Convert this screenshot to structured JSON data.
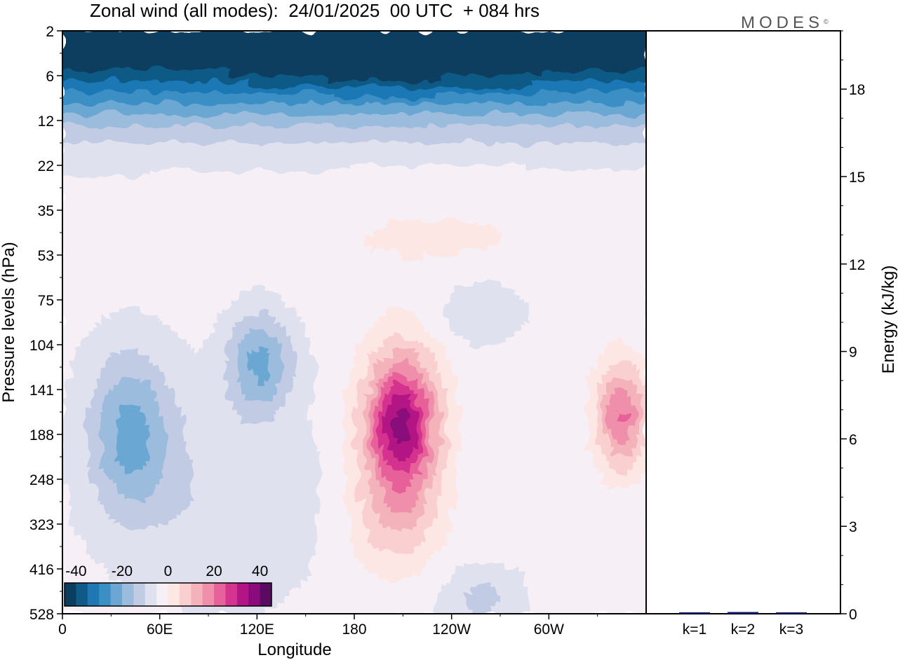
{
  "header": {
    "title": "Zonal wind (all modes):  24/01/2025  00 UTC  + 084 hrs",
    "brand": "MODES",
    "brand_mark": "©"
  },
  "chart_data": [
    {
      "type": "heatmap",
      "title": "Zonal wind (all modes):  24/01/2025  00 UTC  + 084 hrs",
      "xlabel": "Longitude",
      "ylabel": "Pressure levels (hPa)",
      "x_ticks": [
        "0",
        "60E",
        "120E",
        "180",
        "120W",
        "60W"
      ],
      "x_tick_degrees": [
        0,
        60,
        120,
        180,
        240,
        300
      ],
      "xlim": [
        0,
        360
      ],
      "y_ticks": [
        "2",
        "6",
        "12",
        "22",
        "35",
        "53",
        "75",
        "104",
        "141",
        "188",
        "248",
        "323",
        "416",
        "528"
      ],
      "y_scale": "level-index (top to bottom, pressure increasing)",
      "colorbar": {
        "tick_labels": [
          "-40",
          "-20",
          "0",
          "20",
          "40"
        ],
        "range": [
          -40,
          40
        ],
        "step": 5,
        "colors": [
          "#0b3d5e",
          "#0f5a87",
          "#1f78b4",
          "#3a8fc4",
          "#6aa7d2",
          "#9bbcdc",
          "#c2cbe4",
          "#e0e1ef",
          "#f6eff5",
          "#fde7e5",
          "#f9cfcf",
          "#f4b2bb",
          "#f08fab",
          "#e7619a",
          "#d4338e",
          "#b31584",
          "#8a0b7c",
          "#5b0a63"
        ]
      },
      "features": [
        {
          "lon": 210,
          "level": "141-248",
          "peak": 37,
          "sign": "westerly"
        },
        {
          "lon": 345,
          "level": "141-188",
          "peak": 23,
          "sign": "westerly"
        },
        {
          "lon": 40,
          "level": "104-248",
          "peak": -16,
          "sign": "easterly"
        },
        {
          "lon": 120,
          "level": "104-141",
          "peak": -16,
          "sign": "easterly"
        },
        {
          "lon": 180,
          "level": "2-12",
          "peak": -40,
          "sign": "easterly"
        }
      ]
    },
    {
      "type": "bar",
      "ylabel": "Energy (kJ/kg)",
      "categories": [
        "k=1",
        "k=2",
        "k=3"
      ],
      "values": [
        0.05,
        0.06,
        0.03
      ],
      "ylim": [
        0,
        20
      ],
      "y_ticks": [
        "0",
        "3",
        "6",
        "9",
        "12",
        "15",
        "18"
      ],
      "bar_color": "#0d1b6b"
    }
  ]
}
